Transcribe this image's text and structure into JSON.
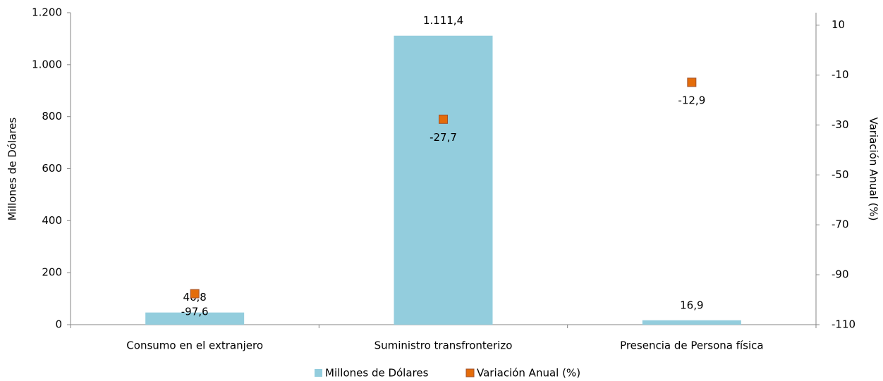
{
  "chart_data": {
    "type": "bar",
    "categories": [
      "Consumo en el extranjero",
      "Suministro transfronterizo",
      "Presencia de Persona física"
    ],
    "series": [
      {
        "name": "Millones de Dólares",
        "type": "bar",
        "color": "#93cddd",
        "values": [
          46.8,
          1111.4,
          16.9
        ],
        "value_labels": [
          "46,8",
          "1.111,4",
          "16,9"
        ]
      },
      {
        "name": "Variación Anual (%)",
        "type": "scatter",
        "axis": "y2",
        "color": "#e46c0a",
        "values": [
          -97.6,
          -27.7,
          -12.9
        ],
        "value_labels": [
          "-97,6",
          "-27,7",
          "-12,9"
        ]
      }
    ],
    "ylabel": "Millones de Dólares",
    "y2label": "Variación Anual (%)",
    "ylim": [
      0,
      1200
    ],
    "yticks": [
      0,
      200,
      400,
      600,
      800,
      {
        "value": 1000,
        "label": "1.000"
      },
      {
        "value": 1200,
        "label": "1.200"
      }
    ],
    "y2lim": [
      -110,
      15
    ],
    "y2ticks": [
      -110,
      -90,
      -70,
      -50,
      -30,
      -10,
      10
    ],
    "legend": "bottom"
  }
}
